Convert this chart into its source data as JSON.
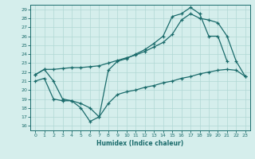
{
  "xlabel": "Humidex (Indice chaleur)",
  "xlim": [
    -0.5,
    23.5
  ],
  "ylim": [
    15.5,
    29.5
  ],
  "xticks": [
    0,
    1,
    2,
    3,
    4,
    5,
    6,
    7,
    8,
    9,
    10,
    11,
    12,
    13,
    14,
    15,
    16,
    17,
    18,
    19,
    20,
    21,
    22,
    23
  ],
  "yticks": [
    16,
    17,
    18,
    19,
    20,
    21,
    22,
    23,
    24,
    25,
    26,
    27,
    28,
    29
  ],
  "bg_color": "#d5eeec",
  "line_color": "#1a6b6b",
  "grid_color": "#b0d8d5",
  "line1_x": [
    0,
    1,
    2,
    3,
    4,
    5,
    6,
    7,
    8,
    9,
    10,
    11,
    12,
    13,
    14,
    15,
    16,
    17,
    18,
    19,
    20,
    21
  ],
  "line1_y": [
    21.7,
    22.3,
    21.0,
    19.0,
    18.8,
    18.0,
    16.5,
    17.0,
    22.2,
    23.2,
    23.5,
    24.0,
    24.5,
    25.2,
    26.0,
    28.2,
    28.5,
    29.2,
    28.5,
    26.0,
    26.0,
    23.2
  ],
  "line2_x": [
    0,
    1,
    2,
    3,
    4,
    5,
    6,
    7,
    8,
    9,
    10,
    11,
    12,
    13,
    14,
    15,
    16,
    17,
    18,
    19,
    20,
    21,
    22,
    23
  ],
  "line2_y": [
    21.7,
    22.3,
    22.3,
    22.4,
    22.5,
    22.5,
    22.6,
    22.7,
    23.0,
    23.3,
    23.6,
    23.9,
    24.3,
    24.8,
    25.3,
    26.2,
    27.8,
    28.5,
    28.0,
    27.8,
    27.5,
    26.0,
    23.2,
    21.5
  ],
  "line3_x": [
    0,
    1,
    2,
    3,
    4,
    5,
    6,
    7,
    8,
    9,
    10,
    11,
    12,
    13,
    14,
    15,
    16,
    17,
    18,
    19,
    20,
    21,
    22,
    23
  ],
  "line3_y": [
    21.0,
    21.3,
    19.0,
    18.8,
    18.8,
    18.5,
    18.0,
    17.0,
    18.5,
    19.5,
    19.8,
    20.0,
    20.3,
    20.5,
    20.8,
    21.0,
    21.3,
    21.5,
    21.8,
    22.0,
    22.2,
    22.3,
    22.2,
    21.5
  ]
}
